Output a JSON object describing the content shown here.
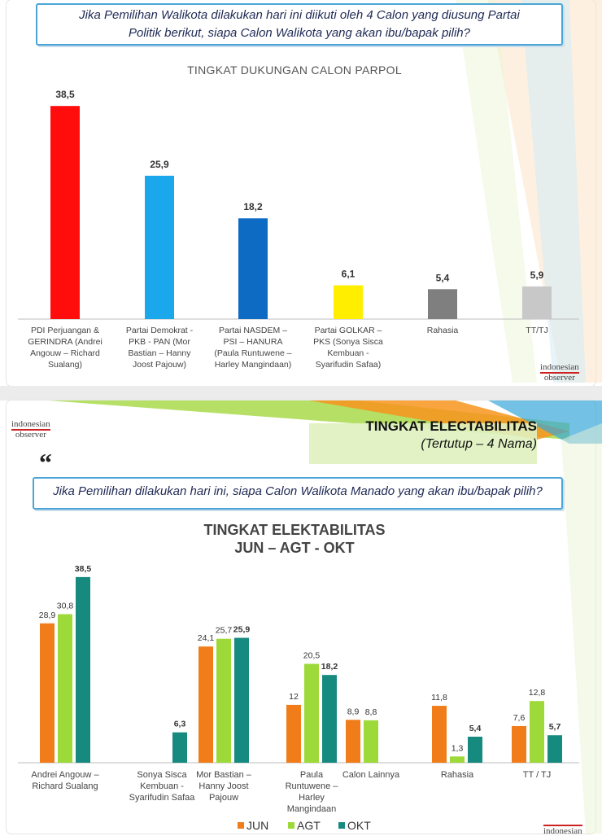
{
  "panel1": {
    "question": "Jika Pemilihan Walikota dilakukan hari ini diikuti oleh 4 Calon yang diusung Partai Politik berikut, siapa Calon Walikota yang akan ibu/bapak pilih?",
    "logo_line1": "indonesian",
    "logo_line2": "observer"
  },
  "panel2": {
    "logo_line1": "indonesian",
    "logo_line2": "observer",
    "banner_title": "TINGKAT ELECTABILITAS",
    "banner_subtitle": "(Tertutup – 4 Nama)",
    "quote_mark": "“",
    "question": "Jika Pemilihan dilakukan hari ini, siapa Calon Walikota Manado yang akan ibu/bapak pilih?",
    "bottom_logo": "indonesian"
  },
  "chart_data": [
    {
      "type": "bar",
      "title": "TINGKAT DUKUNGAN CALON PARPOL",
      "categories": [
        [
          "PDI Perjuangan &",
          "GERINDRA (Andrei",
          "Angouw – Richard",
          "Sualang)"
        ],
        [
          "Partai Demokrat -",
          "PKB - PAN (Mor",
          "Bastian – Hanny",
          "Joost Pajouw)"
        ],
        [
          "Partai NASDEM –",
          "PSI – HANURA",
          "(Paula Runtuwene –",
          "Harley Mangindaan)"
        ],
        [
          "Partai GOLKAR –",
          "PKS (Sonya Sisca",
          "Kembuan -",
          "Syarifudin Safaa)"
        ],
        [
          "Rahasia"
        ],
        [
          "TT/TJ"
        ]
      ],
      "values": [
        38.5,
        25.9,
        18.2,
        6.1,
        5.4,
        5.9
      ],
      "value_labels": [
        "38,5",
        "25,9",
        "18,2",
        "6,1",
        "5,4",
        "5,9"
      ],
      "colors": [
        "#ff0d0d",
        "#1aa7ec",
        "#0d6bc4",
        "#ffee00",
        "#7f7f7f",
        "#c8c8c8"
      ],
      "ylim": [
        0,
        40
      ]
    },
    {
      "type": "bar",
      "title_line1": "TINGKAT ELEKTABILITAS",
      "title_line2": "JUN – AGT - OKT",
      "categories": [
        [
          "Andrei Angouw –",
          "Richard Sualang"
        ],
        [
          "Sonya Sisca",
          "Kembuan -",
          "Syarifudin Safaa"
        ],
        [
          "Mor Bastian –",
          "Hanny Joost",
          "Pajouw"
        ],
        [
          "Paula",
          "Runtuwene –",
          "Harley",
          "Mangindaan"
        ],
        [
          "Calon Lainnya"
        ],
        [
          "Rahasia"
        ],
        [
          "TT / TJ"
        ]
      ],
      "series": [
        {
          "name": "JUN",
          "color": "#f07d1a",
          "values": [
            28.9,
            null,
            24.1,
            12,
            8.9,
            11.8,
            7.6
          ],
          "labels": [
            "28,9",
            "",
            "24,1",
            "12",
            "8,9",
            "11,8",
            "7,6"
          ]
        },
        {
          "name": "AGT",
          "color": "#9ed93a",
          "values": [
            30.8,
            null,
            25.7,
            20.5,
            8.8,
            1.3,
            12.8
          ],
          "labels": [
            "30,8",
            "",
            "25,7",
            "20,5",
            "8,8",
            "1,3",
            "12,8"
          ]
        },
        {
          "name": "OKT",
          "color": "#178a80",
          "values": [
            38.5,
            6.3,
            25.9,
            18.2,
            null,
            5.4,
            5.7
          ],
          "labels": [
            "38,5",
            "6,3",
            "25,9",
            "18,2",
            "",
            "5,4",
            "5,7"
          ]
        }
      ],
      "ylim": [
        0,
        40
      ],
      "legend_position": "bottom"
    }
  ]
}
